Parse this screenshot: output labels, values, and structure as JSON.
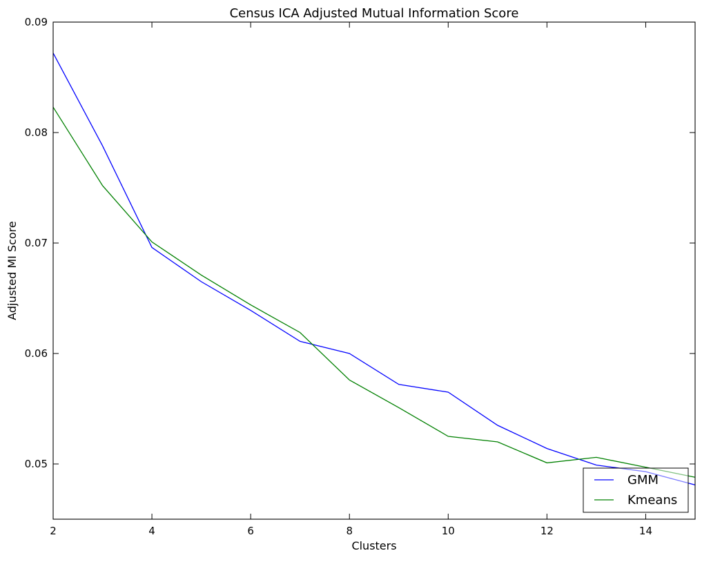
{
  "chart_data": {
    "type": "line",
    "title": "Census ICA Adjusted Mutual Information Score",
    "xlabel": "Clusters",
    "ylabel": "Adjusted MI Score",
    "xlim": [
      2,
      15
    ],
    "ylim": [
      0.045,
      0.09
    ],
    "x_ticks": [
      2,
      4,
      6,
      8,
      10,
      12,
      14
    ],
    "x_tick_labels": [
      "2",
      "4",
      "6",
      "8",
      "10",
      "12",
      "14"
    ],
    "y_ticks": [
      0.05,
      0.06,
      0.07,
      0.08,
      0.09
    ],
    "y_tick_labels": [
      "0.05",
      "0.06",
      "0.07",
      "0.08",
      "0.09"
    ],
    "grid": false,
    "legend_position": "lower-right",
    "x": [
      2,
      3,
      4,
      5,
      6,
      7,
      8,
      9,
      10,
      11,
      12,
      13,
      14,
      15
    ],
    "series": [
      {
        "name": "GMM",
        "color": "#0000ff",
        "values": [
          0.0872,
          0.0788,
          0.0696,
          0.0665,
          0.0639,
          0.0611,
          0.06,
          0.0572,
          0.0565,
          0.0535,
          0.0514,
          0.0499,
          0.0493,
          0.0481
        ]
      },
      {
        "name": "Kmeans",
        "color": "#008000",
        "values": [
          0.0823,
          0.0752,
          0.0701,
          0.0671,
          0.0644,
          0.0619,
          0.0576,
          0.0551,
          0.0525,
          0.052,
          0.0501,
          0.0506,
          0.0497,
          0.0488
        ]
      }
    ]
  }
}
